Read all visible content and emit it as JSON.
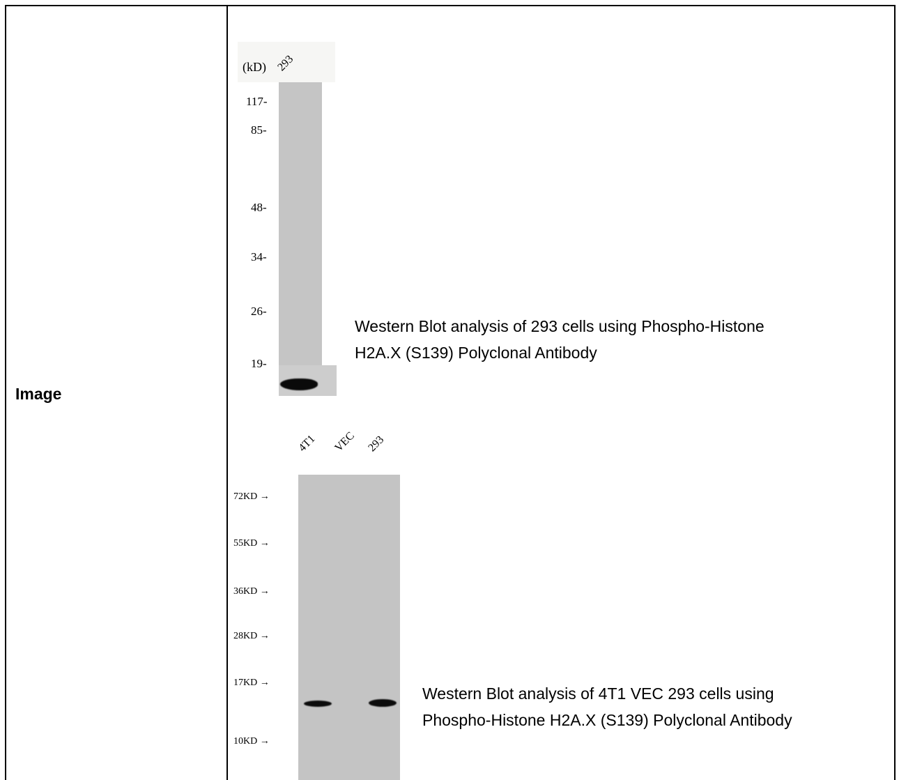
{
  "row_label": "Image",
  "blot1": {
    "kd_header": "(kD)",
    "lane": "293",
    "markers": [
      "117-",
      "85-",
      "48-",
      "34-",
      "26-",
      "19-"
    ],
    "caption_line1": "Western Blot analysis of 293 cells using Phospho-Histone",
    "caption_line2": "H2A.X (S139) Polyclonal Antibody"
  },
  "blot2": {
    "lanes": [
      "4T1",
      "VEC",
      "293"
    ],
    "markers": [
      "72KD →",
      "55KD →",
      "36KD →",
      "28KD →",
      "17KD →",
      "10KD →"
    ],
    "caption_line1": "Western Blot analysis of 4T1 VEC 293 cells using",
    "caption_line2": "Phospho-Histone H2A.X (S139) Polyclonal Antibody"
  }
}
